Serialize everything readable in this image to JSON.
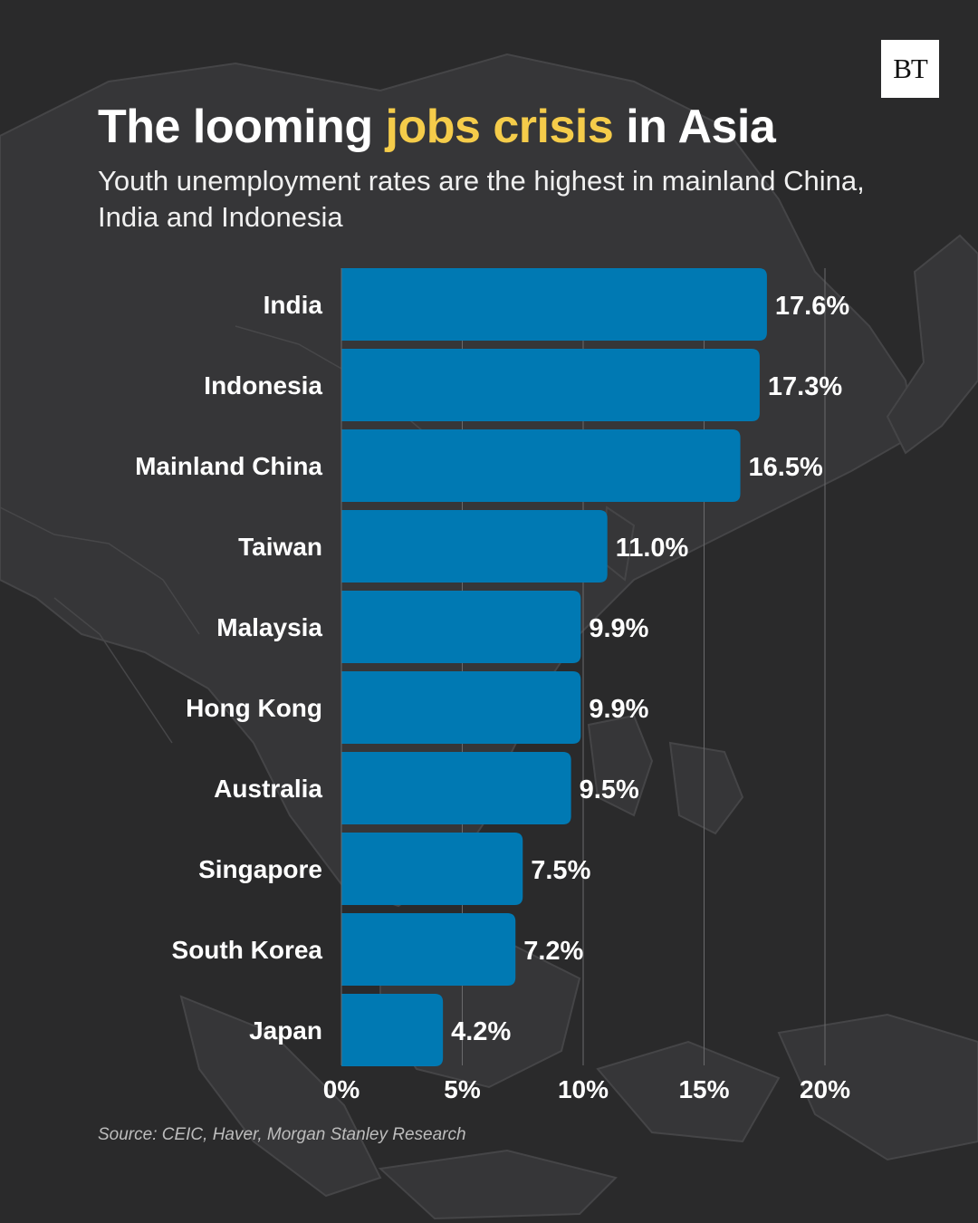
{
  "logo": {
    "text": "BT"
  },
  "header": {
    "title_part1": "The looming ",
    "title_highlight": "jobs crisis",
    "title_part2": " in Asia",
    "subtitle": "Youth unemployment rates are the highest in mainland China, India and Indonesia"
  },
  "source": "Source: CEIC, Haver, Morgan Stanley Research",
  "colors": {
    "background": "#2a2a2b",
    "bar": "#0079b3",
    "highlight": "#f5cc4a",
    "text": "#ffffff",
    "map": "#3b3b3d"
  },
  "chart_data": {
    "type": "bar",
    "orientation": "horizontal",
    "categories": [
      "India",
      "Indonesia",
      "Mainland China",
      "Taiwan",
      "Malaysia",
      "Hong Kong",
      "Australia",
      "Singapore",
      "South Korea",
      "Japan"
    ],
    "values": [
      17.6,
      17.3,
      16.5,
      11.0,
      9.9,
      9.9,
      9.5,
      7.5,
      7.2,
      4.2
    ],
    "value_labels": [
      "17.6%",
      "17.3%",
      "16.5%",
      "11.0%",
      "9.9%",
      "9.9%",
      "9.5%",
      "7.5%",
      "7.2%",
      "4.2%"
    ],
    "xlim": [
      0,
      20
    ],
    "xticks": [
      0,
      5,
      10,
      15,
      20
    ],
    "xtick_labels": [
      "0%",
      "5%",
      "10%",
      "15%",
      "20%"
    ],
    "grid": true,
    "legend": "none"
  }
}
